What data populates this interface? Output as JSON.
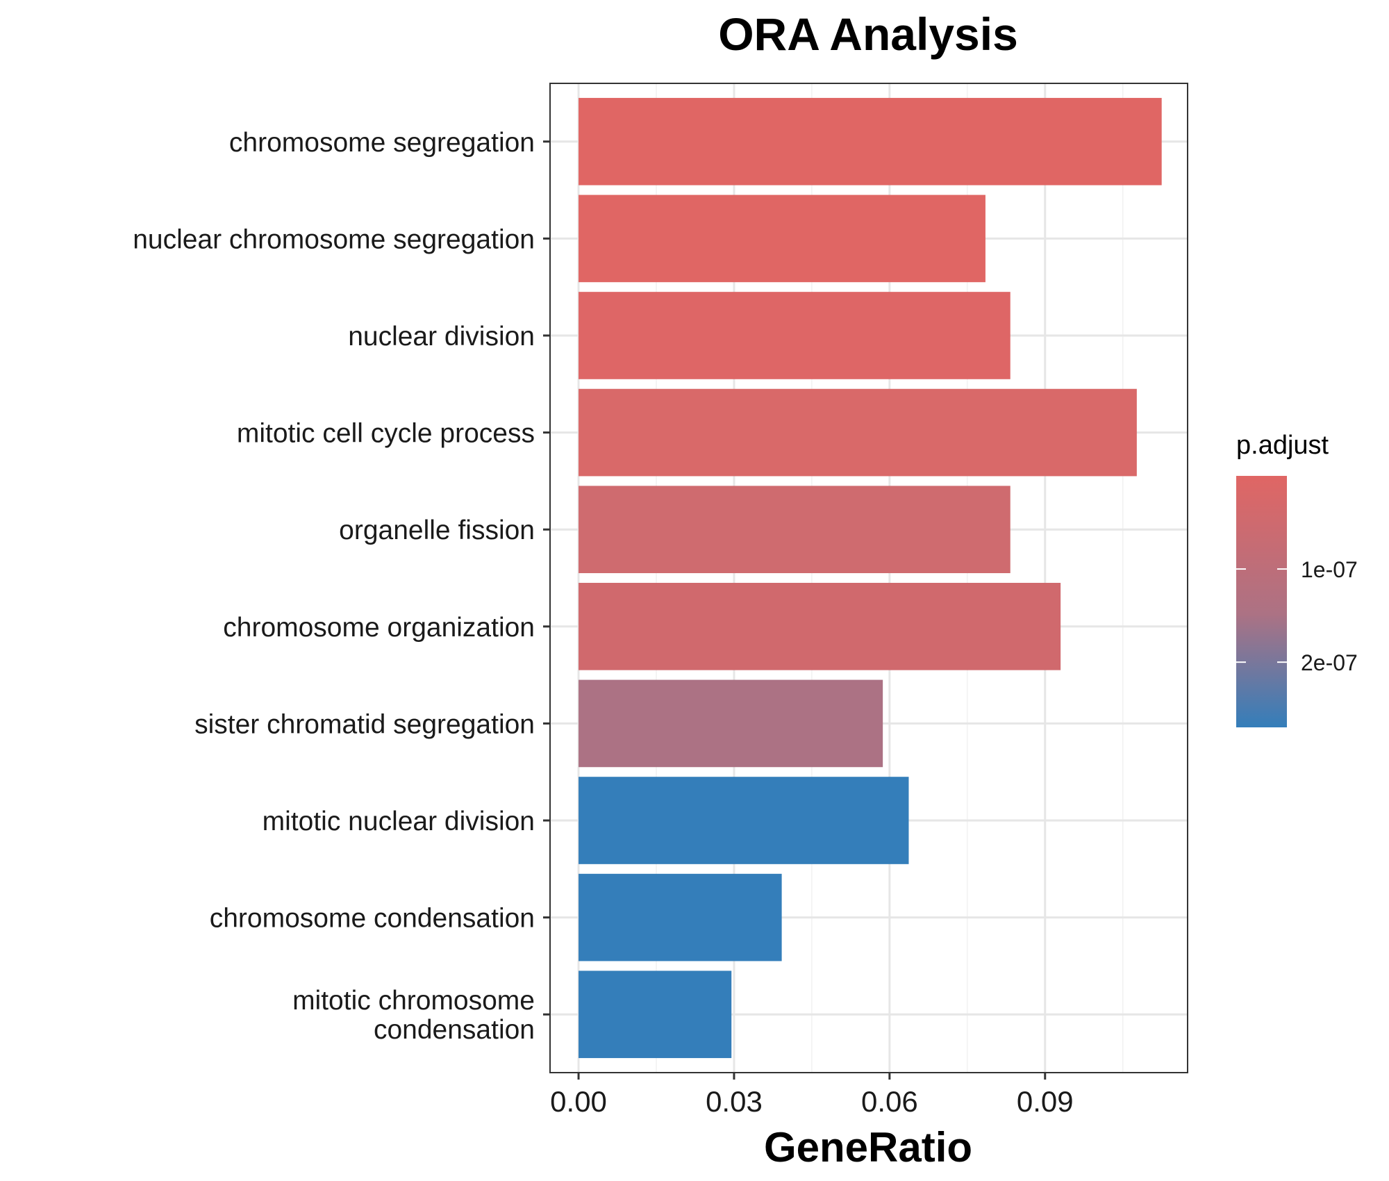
{
  "chart_data": {
    "type": "bar",
    "orientation": "horizontal",
    "title": "ORA Analysis",
    "xlabel": "GeneRatio",
    "ylabel": "",
    "xlim": [
      -0.0055,
      0.1175
    ],
    "x_ticks": [
      0,
      0.03,
      0.06,
      0.09
    ],
    "x_tick_labels": [
      "0.00",
      "0.03",
      "0.06",
      "0.09"
    ],
    "grid": true,
    "categories": [
      [
        "chromosome segregation"
      ],
      [
        "nuclear chromosome segregation"
      ],
      [
        "nuclear division"
      ],
      [
        "mitotic cell cycle process"
      ],
      [
        "organelle fission"
      ],
      [
        "chromosome organization"
      ],
      [
        "sister chromatid segregation"
      ],
      [
        "mitotic nuclear division"
      ],
      [
        "chromosome condensation"
      ],
      [
        "mitotic chromosome",
        "condensation"
      ]
    ],
    "values": [
      0.1125,
      0.0785,
      0.0833,
      0.1077,
      0.0833,
      0.093,
      0.0587,
      0.0637,
      0.0392,
      0.0295
    ],
    "fill_colors": [
      "#E06664",
      "#E06664",
      "#DE6666",
      "#D96969",
      "#CF6B6F",
      "#D0696D",
      "#AC7284",
      "#347EBA",
      "#347EBA",
      "#347EBA"
    ],
    "legend": {
      "title": "p.adjust",
      "position": "right",
      "type": "colorbar",
      "low_color": "#E06664",
      "mid_color": "#AC7284",
      "high_color": "#347EBA",
      "range": [
        0,
        2.7e-07
      ],
      "ticks": [
        1e-07,
        2e-07
      ],
      "tick_labels": [
        "1e-07",
        "2e-07"
      ]
    }
  }
}
